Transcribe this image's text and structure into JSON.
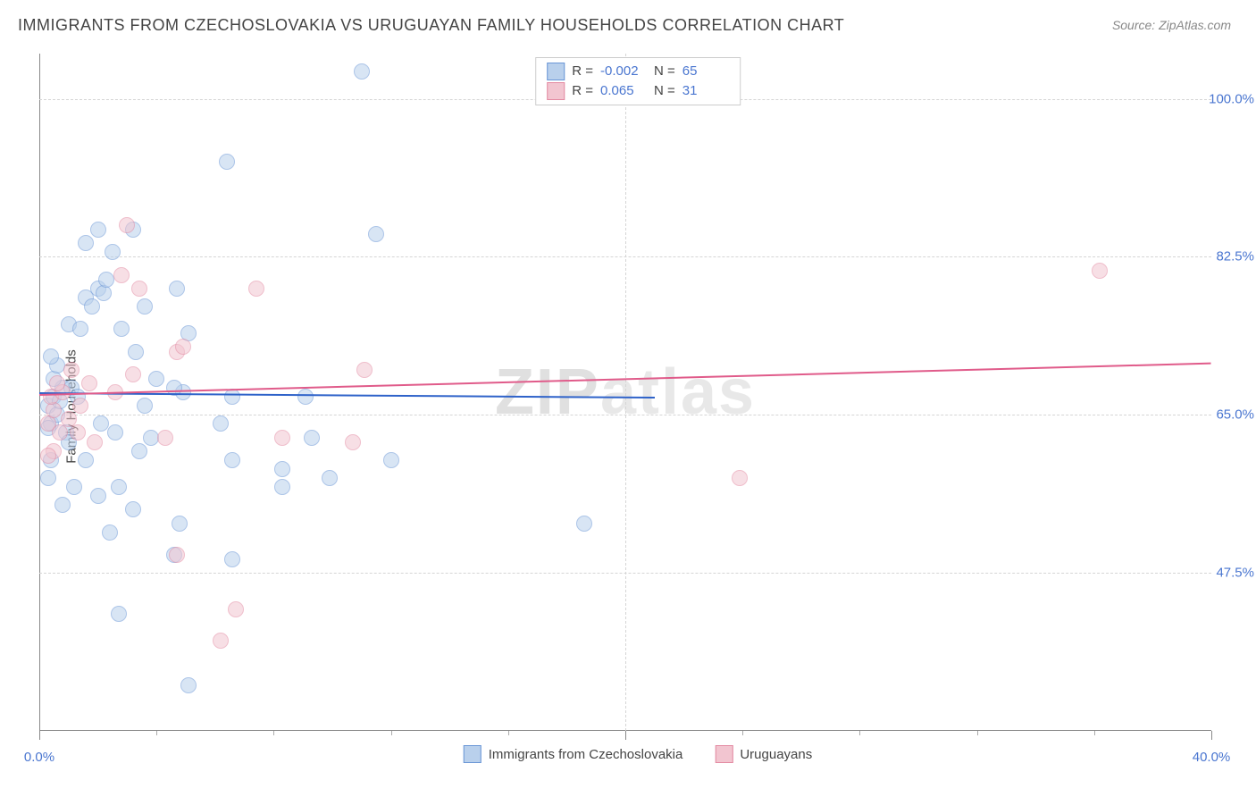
{
  "title": "IMMIGRANTS FROM CZECHOSLOVAKIA VS URUGUAYAN FAMILY HOUSEHOLDS CORRELATION CHART",
  "source": "Source: ZipAtlas.com",
  "watermark_a": "ZIP",
  "watermark_b": "atlas",
  "ylabel": "Family Households",
  "xlim": [
    0,
    40
  ],
  "ylim": [
    30,
    105
  ],
  "y_ticks": [
    47.5,
    65.0,
    82.5,
    100.0
  ],
  "y_tick_labels": [
    "47.5%",
    "65.0%",
    "82.5%",
    "100.0%"
  ],
  "x_major_ticks": [
    0,
    20,
    40
  ],
  "x_minor_ticks": [
    4,
    8,
    12,
    16,
    24,
    28,
    32,
    36
  ],
  "x_labels": [
    {
      "x": 0,
      "text": "0.0%"
    },
    {
      "x": 40,
      "text": "40.0%"
    }
  ],
  "series": [
    {
      "name": "Immigrants from Czechoslovakia",
      "color_fill": "#b9d0ec",
      "color_stroke": "#6a96d6",
      "line_color": "#2e62c9",
      "marker_size": 16,
      "fill_opacity": 0.55,
      "R": "-0.002",
      "N": "65",
      "trend": {
        "x1": 0,
        "y1": 67.5,
        "x2": 21,
        "y2": 67.0
      },
      "points": [
        [
          0.3,
          66
        ],
        [
          0.5,
          67
        ],
        [
          0.4,
          64
        ],
        [
          0.6,
          65
        ],
        [
          0.8,
          68
        ],
        [
          0.5,
          69
        ],
        [
          0.9,
          63
        ],
        [
          0.7,
          66.5
        ],
        [
          1.0,
          62
        ],
        [
          0.4,
          60
        ],
        [
          1.1,
          68
        ],
        [
          1.3,
          67
        ],
        [
          0.6,
          70.5
        ],
        [
          0.4,
          71.5
        ],
        [
          1.0,
          75
        ],
        [
          1.4,
          74.5
        ],
        [
          1.6,
          78
        ],
        [
          1.8,
          77
        ],
        [
          2.0,
          79
        ],
        [
          2.2,
          78.5
        ],
        [
          2.0,
          85.5
        ],
        [
          3.2,
          85.5
        ],
        [
          2.5,
          83
        ],
        [
          1.6,
          84
        ],
        [
          2.3,
          80
        ],
        [
          4.7,
          79
        ],
        [
          3.6,
          77
        ],
        [
          2.8,
          74.5
        ],
        [
          5.1,
          74
        ],
        [
          3.3,
          72
        ],
        [
          4.0,
          69
        ],
        [
          4.9,
          67.5
        ],
        [
          3.6,
          66
        ],
        [
          4.6,
          68
        ],
        [
          6.6,
          67
        ],
        [
          6.2,
          64
        ],
        [
          2.1,
          64
        ],
        [
          2.6,
          63
        ],
        [
          3.8,
          62.5
        ],
        [
          3.4,
          61
        ],
        [
          6.6,
          60
        ],
        [
          8.3,
          59
        ],
        [
          8.3,
          57
        ],
        [
          2.7,
          57
        ],
        [
          2.0,
          56
        ],
        [
          3.2,
          54.5
        ],
        [
          4.8,
          53
        ],
        [
          2.4,
          52
        ],
        [
          4.6,
          49.5
        ],
        [
          6.6,
          49
        ],
        [
          2.7,
          43
        ],
        [
          5.1,
          35
        ],
        [
          11.0,
          103
        ],
        [
          11.5,
          85
        ],
        [
          6.4,
          93
        ],
        [
          18.6,
          53
        ],
        [
          9.1,
          67
        ],
        [
          9.3,
          62.5
        ],
        [
          9.9,
          58
        ],
        [
          12.0,
          60
        ],
        [
          1.6,
          60
        ],
        [
          1.2,
          57
        ],
        [
          0.8,
          55
        ],
        [
          0.3,
          58
        ],
        [
          0.3,
          63.5
        ]
      ]
    },
    {
      "name": "Uruguayans",
      "color_fill": "#f2c5d0",
      "color_stroke": "#e38aa2",
      "line_color": "#e05b8a",
      "marker_size": 16,
      "fill_opacity": 0.55,
      "R": "0.065",
      "N": "31",
      "trend": {
        "x1": 0,
        "y1": 67.3,
        "x2": 40,
        "y2": 70.8
      },
      "points": [
        [
          0.3,
          64
        ],
        [
          0.5,
          65.5
        ],
        [
          0.4,
          67
        ],
        [
          0.8,
          67.5
        ],
        [
          0.6,
          68.5
        ],
        [
          0.7,
          63
        ],
        [
          1.0,
          64.5
        ],
        [
          0.5,
          61
        ],
        [
          0.3,
          60.5
        ],
        [
          1.1,
          70
        ],
        [
          1.7,
          68.5
        ],
        [
          1.4,
          66
        ],
        [
          1.3,
          63
        ],
        [
          1.9,
          62
        ],
        [
          2.6,
          67.5
        ],
        [
          3.2,
          69.5
        ],
        [
          3.0,
          86
        ],
        [
          2.8,
          80.5
        ],
        [
          3.4,
          79
        ],
        [
          4.7,
          72
        ],
        [
          7.4,
          79
        ],
        [
          4.9,
          72.5
        ],
        [
          4.3,
          62.5
        ],
        [
          8.3,
          62.5
        ],
        [
          10.7,
          62
        ],
        [
          11.1,
          70
        ],
        [
          6.7,
          43.5
        ],
        [
          6.2,
          40
        ],
        [
          23.9,
          58
        ],
        [
          36.2,
          81
        ],
        [
          4.7,
          49.5
        ]
      ]
    }
  ],
  "legend_bottom": [
    "Immigrants from Czechoslovakia",
    "Uruguayans"
  ],
  "colors": {
    "text": "#444444",
    "axis_value": "#4a76d0",
    "grid": "#d5d5d5",
    "background": "#ffffff"
  }
}
